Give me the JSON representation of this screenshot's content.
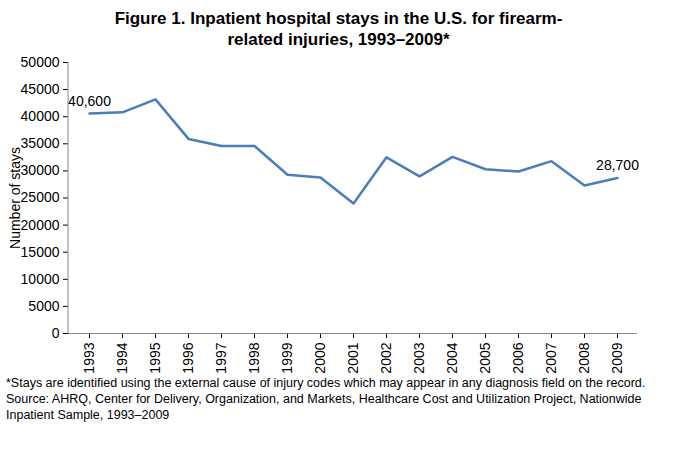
{
  "chart_data": {
    "type": "line",
    "title": "Figure 1. Inpatient hospital stays in the U.S. for firearm-related injuries, 1993–2009*",
    "y_label": "Number of stays",
    "categories": [
      "1993",
      "1994",
      "1995",
      "1996",
      "1997",
      "1998",
      "1999",
      "2000",
      "2001",
      "2002",
      "2003",
      "2004",
      "2005",
      "2006",
      "2007",
      "2008",
      "2009"
    ],
    "values": [
      40600,
      40800,
      43200,
      35900,
      34600,
      34600,
      29300,
      28800,
      24000,
      32500,
      29000,
      32600,
      30300,
      29900,
      31800,
      27300,
      28700
    ],
    "color": "#4a7ebb",
    "ylim": [
      0,
      50000
    ],
    "yticks": [
      0,
      5000,
      10000,
      15000,
      20000,
      25000,
      30000,
      35000,
      40000,
      45000,
      50000
    ],
    "grid": false,
    "annotations": [
      {
        "label": "40,600",
        "x": "1993",
        "y": 40600
      },
      {
        "label": "28,700",
        "x": "2009",
        "y": 28700
      }
    ],
    "notes": [
      "*Stays are identified using the external cause of injury codes which may appear in any diagnosis field on the record.",
      "Source: AHRQ, Center for Delivery, Organization, and Markets, Healthcare Cost and Utilization Project, Nationwide Inpatient Sample, 1993–2009"
    ]
  }
}
